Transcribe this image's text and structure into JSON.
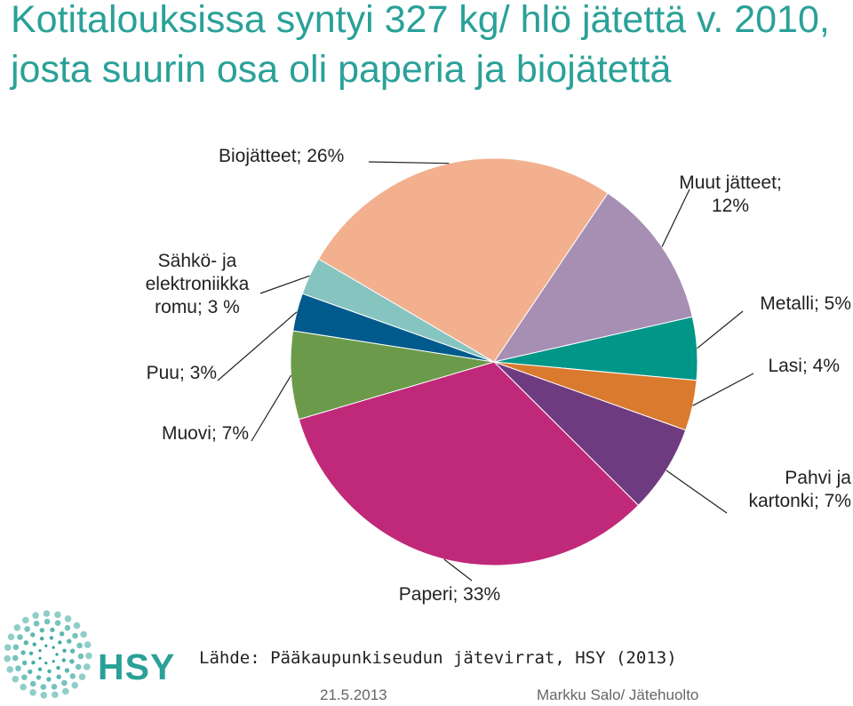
{
  "title": "Kotitalouksissa syntyi 327 kg/ hlö jätettä v. 2010, josta suurin osa oli paperia ja biojätettä",
  "chart_data": {
    "type": "pie",
    "title": "",
    "slices": [
      {
        "name": "Muut jätteet",
        "value": 12,
        "color": "#a78fb4",
        "label_lines": [
          "Muut jätteet;",
          "12%"
        ]
      },
      {
        "name": "Metalli",
        "value": 5,
        "color": "#009688",
        "label_lines": [
          "Metalli; 5%"
        ]
      },
      {
        "name": "Lasi",
        "value": 4,
        "color": "#d97a2f",
        "label_lines": [
          "Lasi; 4%"
        ]
      },
      {
        "name": "Pahvi ja kartonki",
        "value": 7,
        "color": "#6f3b80",
        "label_lines": [
          "Pahvi ja",
          "kartonki; 7%"
        ]
      },
      {
        "name": "Paperi",
        "value": 33,
        "color": "#c0297a",
        "label_lines": [
          "Paperi; 33%"
        ]
      },
      {
        "name": "Muovi",
        "value": 7,
        "color": "#6a9a4a",
        "label_lines": [
          "Muovi; 7%"
        ]
      },
      {
        "name": "Puu",
        "value": 3,
        "color": "#005a8c",
        "label_lines": [
          "Puu; 3%"
        ]
      },
      {
        "name": "Sähkö- ja elektroniikka romu",
        "value": 3,
        "color": "#86c4c0",
        "label_lines": [
          "Sähkö- ja",
          "elektroniikka",
          "romu; 3 %"
        ]
      },
      {
        "name": "Biojätteet",
        "value": 26,
        "color": "#f2b08f",
        "label_lines": [
          "Biojätteet; 26%"
        ]
      }
    ]
  },
  "source": "Lähde: Pääkaupunkiseudun jätevirrat, HSY (2013)",
  "footer": {
    "date": "21.5.2013",
    "author": "Markku Salo/ Jätehuolto"
  },
  "logo": {
    "text": "HSY",
    "color": "#2aa198"
  }
}
